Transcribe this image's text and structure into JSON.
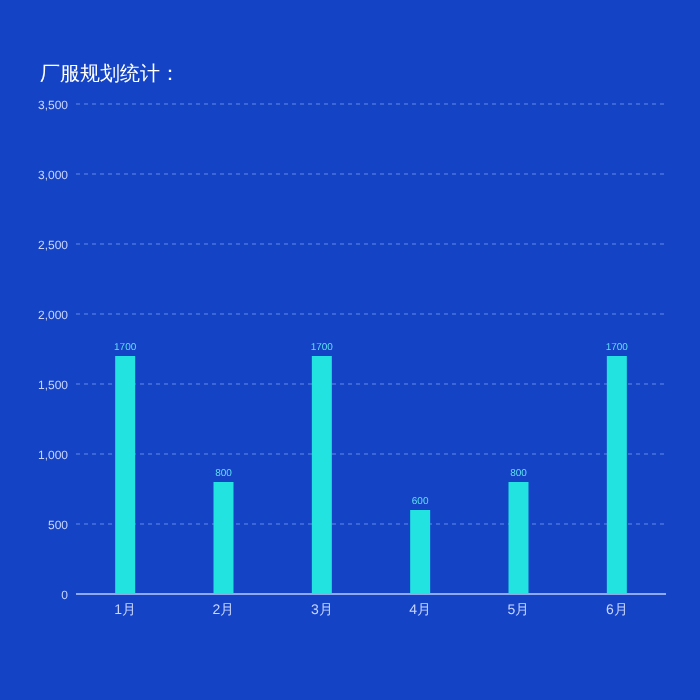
{
  "chart_data": {
    "type": "bar",
    "title": "厂服规划统计：",
    "categories": [
      "1月",
      "2月",
      "3月",
      "4月",
      "5月",
      "6月"
    ],
    "values": [
      1700,
      800,
      1700,
      600,
      800,
      1700
    ],
    "color": "#22e3e0",
    "ylim": [
      0,
      3500
    ],
    "yticks": [
      0,
      500,
      {
        "value": 1000,
        "label": "1,000"
      },
      {
        "value": 1500,
        "label": "1,500"
      },
      {
        "value": 2000,
        "label": "2,000"
      },
      {
        "value": 2500,
        "label": "2,500"
      },
      {
        "value": 3000,
        "label": "3,000"
      },
      {
        "value": 3500,
        "label": "3,500"
      }
    ],
    "grid": "y",
    "data_labels": true
  }
}
